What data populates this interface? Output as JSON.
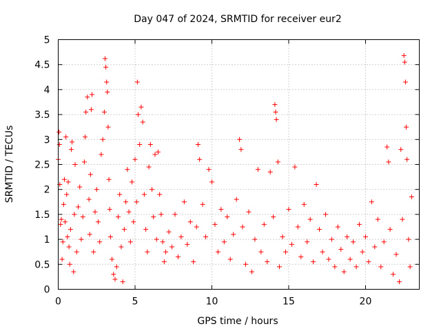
{
  "chart_data": {
    "type": "scatter",
    "title": "Day 047 of 2024, SRMTID for receiver eur2",
    "xlabel": "GPS time / hours",
    "ylabel": "SRMTID / TECUs",
    "xlim": [
      0,
      23.5
    ],
    "ylim": [
      0,
      5
    ],
    "x_ticks": [
      0,
      5,
      10,
      15,
      20
    ],
    "x_tick_labels": [
      "0",
      "5",
      "10",
      "15",
      "20"
    ],
    "y_ticks": [
      0,
      0.5,
      1,
      1.5,
      2,
      2.5,
      3,
      3.5,
      4,
      4.5,
      5
    ],
    "y_tick_labels": [
      "0",
      "0.5",
      "1",
      "1.5",
      "2",
      "2.5",
      "3",
      "3.5",
      "4",
      "4.5",
      "5"
    ],
    "grid": true,
    "marker": "plus",
    "color": "#ff0000",
    "series": [
      {
        "name": "SRMTID",
        "points": [
          [
            0.0,
            2.6
          ],
          [
            0.05,
            3.15
          ],
          [
            0.08,
            2.9
          ],
          [
            0.1,
            2.1
          ],
          [
            0.15,
            1.3
          ],
          [
            0.2,
            1.4
          ],
          [
            0.25,
            0.6
          ],
          [
            0.3,
            0.95
          ],
          [
            0.35,
            1.7
          ],
          [
            0.4,
            2.2
          ],
          [
            0.45,
            1.35
          ],
          [
            0.5,
            3.05
          ],
          [
            0.55,
            1.9
          ],
          [
            0.6,
            1.05
          ],
          [
            0.65,
            2.15
          ],
          [
            0.7,
            0.85
          ],
          [
            0.75,
            0.5
          ],
          [
            0.8,
            1.2
          ],
          [
            0.85,
            2.8
          ],
          [
            0.9,
            2.95
          ],
          [
            1.0,
            0.35
          ],
          [
            1.05,
            1.5
          ],
          [
            1.1,
            2.5
          ],
          [
            1.2,
            0.75
          ],
          [
            1.3,
            1.65
          ],
          [
            1.4,
            2.05
          ],
          [
            1.5,
            1.0
          ],
          [
            1.6,
            1.45
          ],
          [
            1.7,
            2.55
          ],
          [
            1.75,
            3.05
          ],
          [
            1.8,
            3.55
          ],
          [
            1.9,
            3.85
          ],
          [
            2.0,
            1.8
          ],
          [
            2.05,
            1.1
          ],
          [
            2.1,
            2.3
          ],
          [
            2.15,
            3.6
          ],
          [
            2.2,
            3.9
          ],
          [
            2.3,
            0.75
          ],
          [
            2.4,
            1.55
          ],
          [
            2.5,
            2.0
          ],
          [
            2.6,
            1.35
          ],
          [
            2.7,
            0.95
          ],
          [
            2.8,
            2.7
          ],
          [
            2.9,
            3.0
          ],
          [
            3.0,
            3.55
          ],
          [
            3.05,
            4.62
          ],
          [
            3.1,
            4.45
          ],
          [
            3.15,
            4.15
          ],
          [
            3.2,
            3.95
          ],
          [
            3.25,
            3.25
          ],
          [
            3.3,
            2.2
          ],
          [
            3.35,
            1.6
          ],
          [
            3.4,
            1.05
          ],
          [
            3.5,
            0.6
          ],
          [
            3.6,
            0.3
          ],
          [
            3.7,
            0.2
          ],
          [
            3.8,
            0.45
          ],
          [
            3.9,
            1.45
          ],
          [
            4.0,
            1.9
          ],
          [
            4.1,
            0.85
          ],
          [
            4.2,
            0.15
          ],
          [
            4.3,
            1.2
          ],
          [
            4.4,
            1.75
          ],
          [
            4.5,
            2.4
          ],
          [
            4.6,
            1.55
          ],
          [
            4.7,
            0.95
          ],
          [
            4.8,
            2.15
          ],
          [
            4.9,
            1.35
          ],
          [
            5.0,
            2.6
          ],
          [
            5.1,
            1.75
          ],
          [
            5.15,
            4.15
          ],
          [
            5.2,
            3.5
          ],
          [
            5.3,
            2.9
          ],
          [
            5.4,
            3.65
          ],
          [
            5.5,
            3.35
          ],
          [
            5.6,
            1.9
          ],
          [
            5.7,
            1.2
          ],
          [
            5.8,
            0.75
          ],
          [
            5.9,
            2.45
          ],
          [
            6.0,
            2.9
          ],
          [
            6.1,
            2.0
          ],
          [
            6.2,
            1.45
          ],
          [
            6.3,
            2.7
          ],
          [
            6.4,
            1.0
          ],
          [
            6.5,
            2.75
          ],
          [
            6.6,
            1.9
          ],
          [
            6.7,
            1.5
          ],
          [
            6.8,
            0.95
          ],
          [
            6.9,
            0.55
          ],
          [
            7.0,
            0.75
          ],
          [
            7.2,
            1.15
          ],
          [
            7.4,
            0.85
          ],
          [
            7.6,
            1.5
          ],
          [
            7.8,
            0.65
          ],
          [
            8.0,
            1.05
          ],
          [
            8.2,
            1.75
          ],
          [
            8.4,
            0.9
          ],
          [
            8.6,
            1.35
          ],
          [
            8.8,
            0.55
          ],
          [
            9.0,
            1.25
          ],
          [
            9.1,
            2.9
          ],
          [
            9.2,
            2.6
          ],
          [
            9.4,
            1.7
          ],
          [
            9.6,
            1.05
          ],
          [
            9.8,
            2.4
          ],
          [
            10.0,
            2.15
          ],
          [
            10.2,
            1.3
          ],
          [
            10.4,
            0.75
          ],
          [
            10.6,
            1.6
          ],
          [
            10.8,
            0.95
          ],
          [
            11.0,
            1.45
          ],
          [
            11.2,
            0.6
          ],
          [
            11.4,
            1.1
          ],
          [
            11.6,
            1.8
          ],
          [
            11.8,
            3.0
          ],
          [
            11.9,
            2.8
          ],
          [
            12.0,
            1.25
          ],
          [
            12.2,
            0.5
          ],
          [
            12.4,
            1.55
          ],
          [
            12.6,
            0.35
          ],
          [
            12.8,
            1.0
          ],
          [
            13.0,
            2.4
          ],
          [
            13.2,
            0.75
          ],
          [
            13.4,
            1.3
          ],
          [
            13.6,
            0.55
          ],
          [
            13.8,
            2.35
          ],
          [
            14.0,
            1.45
          ],
          [
            14.1,
            3.7
          ],
          [
            14.15,
            3.55
          ],
          [
            14.2,
            3.4
          ],
          [
            14.3,
            2.55
          ],
          [
            14.4,
            0.45
          ],
          [
            14.6,
            1.05
          ],
          [
            14.8,
            0.75
          ],
          [
            15.0,
            1.6
          ],
          [
            15.2,
            0.9
          ],
          [
            15.4,
            2.45
          ],
          [
            15.6,
            1.25
          ],
          [
            15.8,
            0.65
          ],
          [
            16.0,
            1.7
          ],
          [
            16.2,
            0.95
          ],
          [
            16.4,
            1.4
          ],
          [
            16.6,
            0.55
          ],
          [
            16.8,
            2.1
          ],
          [
            17.0,
            1.2
          ],
          [
            17.2,
            0.75
          ],
          [
            17.4,
            1.5
          ],
          [
            17.6,
            0.6
          ],
          [
            17.8,
            1.0
          ],
          [
            18.0,
            0.45
          ],
          [
            18.2,
            1.25
          ],
          [
            18.4,
            0.8
          ],
          [
            18.6,
            0.35
          ],
          [
            18.8,
            1.05
          ],
          [
            19.0,
            0.6
          ],
          [
            19.2,
            0.95
          ],
          [
            19.4,
            0.45
          ],
          [
            19.6,
            1.3
          ],
          [
            19.8,
            0.75
          ],
          [
            20.0,
            1.05
          ],
          [
            20.2,
            0.55
          ],
          [
            20.4,
            1.75
          ],
          [
            20.6,
            0.85
          ],
          [
            20.8,
            1.4
          ],
          [
            21.0,
            0.45
          ],
          [
            21.2,
            0.95
          ],
          [
            21.4,
            2.85
          ],
          [
            21.5,
            2.55
          ],
          [
            21.6,
            1.2
          ],
          [
            21.8,
            0.3
          ],
          [
            22.0,
            0.7
          ],
          [
            22.2,
            0.15
          ],
          [
            22.3,
            2.8
          ],
          [
            22.4,
            1.4
          ],
          [
            22.5,
            4.68
          ],
          [
            22.55,
            4.55
          ],
          [
            22.6,
            4.15
          ],
          [
            22.65,
            3.25
          ],
          [
            22.7,
            2.6
          ],
          [
            22.8,
            1.0
          ],
          [
            22.9,
            0.45
          ],
          [
            23.0,
            1.85
          ]
        ]
      }
    ]
  }
}
